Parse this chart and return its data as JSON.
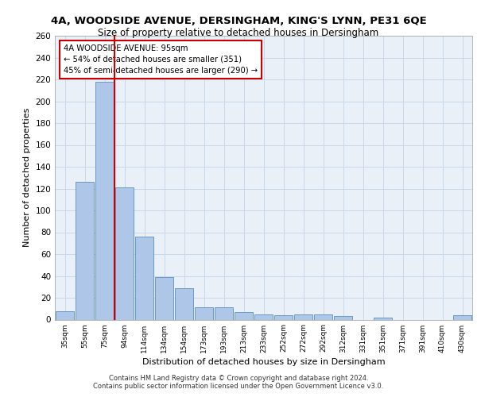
{
  "title_line1": "4A, WOODSIDE AVENUE, DERSINGHAM, KING'S LYNN, PE31 6QE",
  "title_line2": "Size of property relative to detached houses in Dersingham",
  "xlabel": "Distribution of detached houses by size in Dersingham",
  "ylabel": "Number of detached properties",
  "categories": [
    "35sqm",
    "55sqm",
    "75sqm",
    "94sqm",
    "114sqm",
    "134sqm",
    "154sqm",
    "173sqm",
    "193sqm",
    "213sqm",
    "233sqm",
    "252sqm",
    "272sqm",
    "292sqm",
    "312sqm",
    "331sqm",
    "351sqm",
    "371sqm",
    "391sqm",
    "410sqm",
    "430sqm"
  ],
  "values": [
    8,
    126,
    218,
    121,
    76,
    39,
    29,
    11,
    11,
    7,
    5,
    4,
    5,
    5,
    3,
    0,
    2,
    0,
    0,
    0,
    4
  ],
  "bar_color": "#aec6e8",
  "bar_edge_color": "#5a8fc2",
  "red_line_x": 2.5,
  "annotation_title": "4A WOODSIDE AVENUE: 95sqm",
  "annotation_line2": "← 54% of detached houses are smaller (351)",
  "annotation_line3": "45% of semi-detached houses are larger (290) →",
  "annotation_box_color": "#ffffff",
  "annotation_box_edge": "#cc0000",
  "ylim": [
    0,
    260
  ],
  "yticks": [
    0,
    20,
    40,
    60,
    80,
    100,
    120,
    140,
    160,
    180,
    200,
    220,
    240,
    260
  ],
  "grid_color": "#c8d8e8",
  "background_color": "#eaf0f8",
  "footnote1": "Contains HM Land Registry data © Crown copyright and database right 2024.",
  "footnote2": "Contains public sector information licensed under the Open Government Licence v3.0."
}
